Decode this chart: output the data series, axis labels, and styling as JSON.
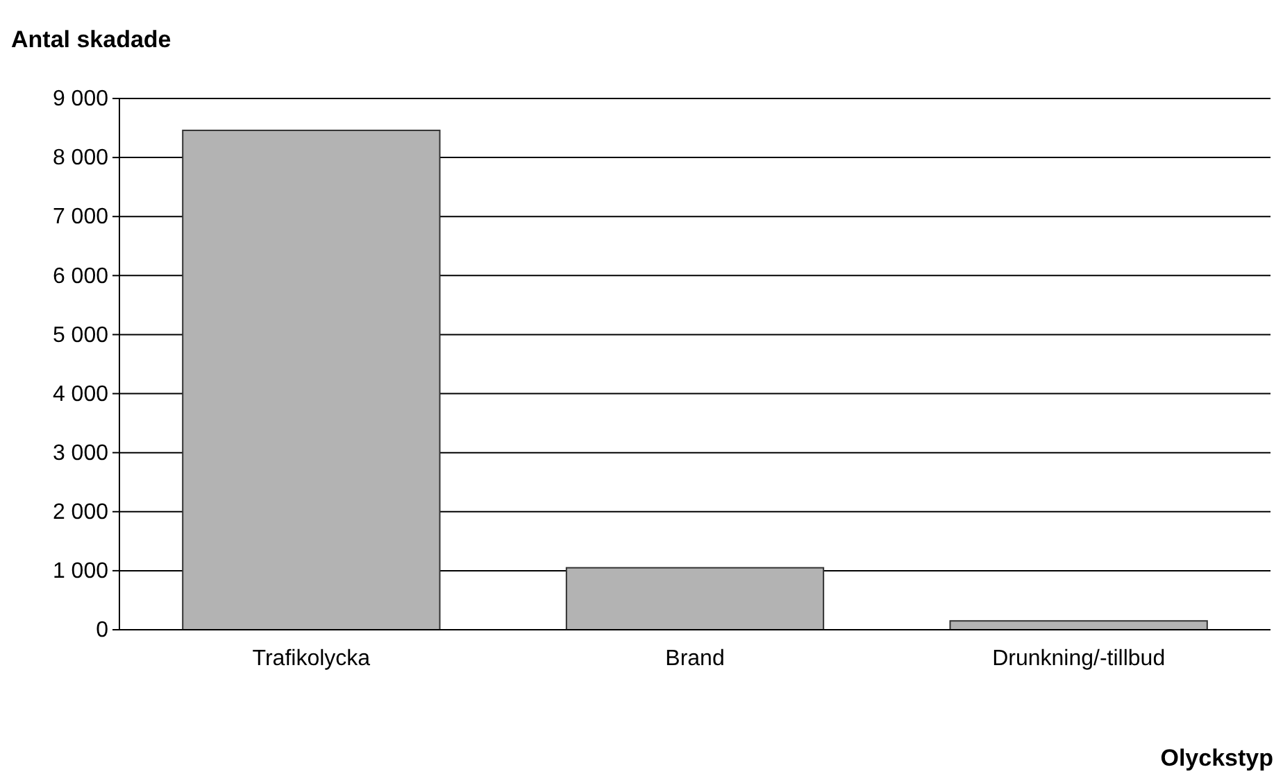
{
  "chart_data": {
    "type": "bar",
    "ylabel": "Antal skadade",
    "xlabel": "Olyckstyp",
    "categories": [
      "Trafikolycka",
      "Brand",
      "Drunkning/-tillbud"
    ],
    "values": [
      8460,
      1050,
      150
    ],
    "color": "#b3b3b3",
    "ylim": [
      0,
      9000
    ],
    "yticks": [
      0,
      {
        "value": 1000,
        "label": "1 000"
      },
      {
        "value": 2000,
        "label": "2 000"
      },
      {
        "value": 3000,
        "label": "3 000"
      },
      {
        "value": 4000,
        "label": "4 000"
      },
      {
        "value": 5000,
        "label": "5 000"
      },
      {
        "value": 6000,
        "label": "6 000"
      },
      {
        "value": 7000,
        "label": "7 000"
      },
      {
        "value": 8000,
        "label": "8 000"
      },
      {
        "value": 9000,
        "label": "9 000"
      }
    ],
    "grid": "y"
  }
}
